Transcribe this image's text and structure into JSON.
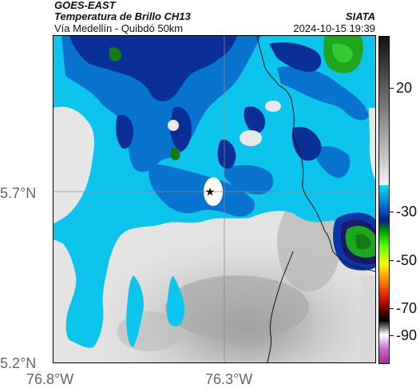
{
  "header": {
    "satellite": "GOES-EAST",
    "product": "Temperatura de Brillo CH13",
    "route": "Vía Medellín - Quibdó 50km",
    "brand": "SIATA",
    "datetime": "2024-10-15 19:39"
  },
  "map": {
    "lat_labels": [
      "5.7°N",
      "5.2°N"
    ],
    "lon_labels": [
      "76.8°W",
      "76.3°W"
    ],
    "marker": "star"
  },
  "colorbar": {
    "tick_labels": [
      "20",
      "-30",
      "-50",
      "-70",
      "-90"
    ],
    "colors": {
      "gray": "#8a8a8a",
      "cyan": "#00bfe8",
      "blue": "#0a37a8",
      "green": "#1fa61f",
      "yellow": "#ffff00",
      "red": "#e62600",
      "black": "#000000",
      "magenta": "#cc33cc"
    }
  }
}
